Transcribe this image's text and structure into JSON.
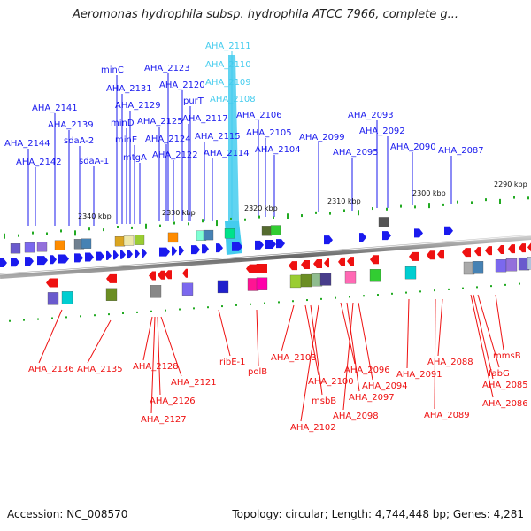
{
  "title": "Aeromonas hydrophila subsp. hydrophila ATCC 7966, complete g...",
  "footer": {
    "accession": "Accession: NC_008570",
    "summary": "Topology: circular; Length: 4,744,448 bp; Genes: 4,281"
  },
  "colors": {
    "forward": "#1a1aee",
    "reverse": "#ee1111",
    "highlight": "#44ccee",
    "backbone": "#808080",
    "tick": "#22aa22"
  },
  "kbp_labels": [
    "2340 kbp",
    "2330 kbp",
    "2320 kbp",
    "2310 kbp",
    "2300 kbp",
    "2290 kbp"
  ],
  "forward_genes": [
    "AHA_2144",
    "AHA_2142",
    "AHA_2141",
    "AHA_2139",
    "sdaA-2",
    "sdaA-1",
    "minC",
    "AHA_2131",
    "AHA_2129",
    "minD",
    "minE",
    "mtgA",
    "AHA_2125",
    "AHA_2124",
    "AHA_2123",
    "AHA_2122",
    "AHA_2120",
    "AHA_2117",
    "purT",
    "AHA_2115",
    "AHA_2114",
    "AHA_2111",
    "AHA_2110",
    "AHA_2109",
    "AHA_2108",
    "AHA_2106",
    "AHA_2105",
    "AHA_2104",
    "AHA_2099",
    "AHA_2095",
    "AHA_2093",
    "AHA_2092",
    "AHA_2090",
    "AHA_2087"
  ],
  "reverse_genes": [
    "AHA_2136",
    "AHA_2135",
    "AHA_2128",
    "AHA_2121",
    "AHA_2126",
    "AHA_2127",
    "ribE-1",
    "polB",
    "AHA_2103",
    "AHA_2100",
    "msbB",
    "AHA_2102",
    "AHA_2096",
    "AHA_2097",
    "AHA_2098",
    "AHA_2094",
    "AHA_2091",
    "AHA_2088",
    "AHA_2089",
    "fabG",
    "AHA_2085",
    "AHA_2086",
    "mmsB"
  ]
}
